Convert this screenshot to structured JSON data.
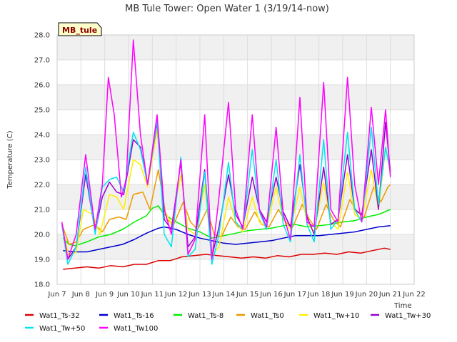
{
  "chart_data": {
    "type": "line",
    "title": "MB Tule Tower: Open Water 1 (3/19/14-now)",
    "site_label": "MB_tule",
    "xlabel": "Time",
    "ylabel": "Temperature (C)",
    "xlim": [
      7,
      22
    ],
    "ylim": [
      18.0,
      28.0
    ],
    "xticks": [
      7,
      8,
      9,
      10,
      11,
      12,
      13,
      14,
      15,
      16,
      17,
      18,
      19,
      20,
      21,
      22
    ],
    "xtick_labels": [
      "Jun 7",
      "Jun 8",
      "Jun 9",
      "Jun 10",
      "Jun 11",
      "Jun 12",
      "Jun 13",
      "Jun 14",
      "Jun 15",
      "Jun 16",
      "Jun 17",
      "Jun 18",
      "Jun 19",
      "Jun 20",
      "Jun 21",
      "Jun 22"
    ],
    "yticks": [
      18.0,
      19.0,
      20.0,
      21.0,
      22.0,
      23.0,
      24.0,
      25.0,
      26.0,
      27.0,
      28.0
    ],
    "ytick_labels": [
      "18.0",
      "19.0",
      "20.0",
      "21.0",
      "22.0",
      "23.0",
      "24.0",
      "25.0",
      "26.0",
      "27.0",
      "28.0"
    ],
    "bands": [
      [
        19.0,
        20.0
      ],
      [
        21.0,
        22.0
      ],
      [
        23.0,
        24.0
      ],
      [
        25.0,
        26.0
      ],
      [
        27.0,
        28.0
      ]
    ],
    "grid": true,
    "legend_position": "bottom",
    "series": [
      {
        "name": "Wat1_Ts-32",
        "color": "#dd0000",
        "x": [
          7.25,
          7.75,
          8.25,
          8.75,
          9.25,
          9.75,
          10.25,
          10.75,
          11.25,
          11.75,
          12.25,
          12.75,
          13.25,
          13.75,
          14.25,
          14.75,
          15.25,
          15.75,
          16.25,
          16.75,
          17.25,
          17.75,
          18.25,
          18.75,
          19.25,
          19.75,
          20.25,
          20.75,
          21.0
        ],
        "values": [
          18.6,
          18.65,
          18.7,
          18.65,
          18.75,
          18.7,
          18.8,
          18.8,
          18.95,
          18.95,
          19.1,
          19.15,
          19.2,
          19.15,
          19.1,
          19.05,
          19.1,
          19.05,
          19.15,
          19.1,
          19.2,
          19.2,
          19.25,
          19.2,
          19.3,
          19.25,
          19.35,
          19.45,
          19.4
        ]
      },
      {
        "name": "Wat1_Ts-16",
        "color": "#0000cc",
        "x": [
          7.25,
          7.75,
          8.25,
          8.75,
          9.25,
          9.75,
          10.25,
          10.75,
          11.25,
          11.5,
          12.0,
          12.5,
          13.0,
          13.5,
          14.0,
          14.5,
          15.0,
          15.5,
          16.0,
          16.5,
          17.0,
          17.5,
          18.0,
          18.5,
          19.0,
          19.5,
          20.0,
          20.5,
          21.0
        ],
        "values": [
          19.35,
          19.3,
          19.3,
          19.4,
          19.5,
          19.6,
          19.8,
          20.05,
          20.25,
          20.3,
          20.2,
          20.0,
          19.85,
          19.75,
          19.65,
          19.6,
          19.65,
          19.7,
          19.75,
          19.85,
          19.95,
          19.95,
          19.95,
          20.0,
          20.05,
          20.1,
          20.2,
          20.3,
          20.35
        ]
      },
      {
        "name": "Wat1_Ts-8",
        "color": "#00ee00",
        "x": [
          7.25,
          7.5,
          7.75,
          8.25,
          8.75,
          9.25,
          9.75,
          10.25,
          10.75,
          11.0,
          11.25,
          11.5,
          12.0,
          12.5,
          13.0,
          13.5,
          14.0,
          14.5,
          15.0,
          15.5,
          16.0,
          16.5,
          17.0,
          17.5,
          18.0,
          18.5,
          19.0,
          19.5,
          20.0,
          20.5,
          21.0
        ],
        "values": [
          19.85,
          19.6,
          19.55,
          19.7,
          19.9,
          20.0,
          20.2,
          20.5,
          20.75,
          21.05,
          21.15,
          20.8,
          20.5,
          20.25,
          20.1,
          19.85,
          19.95,
          20.05,
          20.15,
          20.2,
          20.25,
          20.35,
          20.4,
          20.3,
          20.35,
          20.4,
          20.5,
          20.55,
          20.7,
          20.8,
          21.0
        ]
      },
      {
        "name": "Wat1_Ts0",
        "color": "#ee9900",
        "x": [
          7.2,
          7.5,
          7.8,
          8.1,
          8.6,
          8.9,
          9.2,
          9.6,
          9.9,
          10.2,
          10.6,
          10.9,
          11.25,
          11.6,
          11.9,
          12.3,
          12.6,
          12.9,
          13.3,
          13.6,
          13.9,
          14.3,
          14.6,
          14.9,
          15.3,
          15.6,
          15.9,
          16.3,
          16.6,
          16.9,
          17.3,
          17.6,
          17.9,
          18.3,
          18.6,
          18.9,
          19.3,
          19.6,
          19.9,
          20.3,
          20.6,
          20.9,
          21.0
        ],
        "values": [
          20.4,
          19.6,
          19.7,
          20.2,
          20.4,
          20.1,
          20.6,
          20.7,
          20.6,
          21.6,
          21.7,
          21.0,
          22.6,
          20.6,
          20.4,
          21.3,
          20.5,
          20.2,
          21.0,
          20.0,
          19.9,
          20.7,
          20.3,
          20.2,
          20.9,
          20.4,
          20.3,
          21.0,
          20.5,
          20.3,
          21.2,
          20.6,
          20.2,
          21.2,
          20.6,
          20.3,
          21.4,
          20.9,
          20.7,
          21.9,
          21.3,
          21.9,
          22.0
        ]
      },
      {
        "name": "Wat1_Tw+10",
        "color": "#ffee00",
        "x": [
          7.2,
          7.5,
          7.8,
          8.1,
          8.5,
          8.8,
          9.2,
          9.5,
          9.8,
          10.2,
          10.5,
          10.8,
          11.2,
          11.5,
          11.8,
          12.2,
          12.5,
          12.8,
          13.2,
          13.5,
          13.8,
          14.2,
          14.5,
          14.8,
          15.2,
          15.5,
          15.8,
          16.2,
          16.5,
          16.8,
          17.2,
          17.5,
          17.8,
          18.2,
          18.5,
          18.8,
          19.2,
          19.5,
          19.8,
          20.2,
          20.5,
          20.8,
          21.0
        ],
        "values": [
          20.3,
          19.1,
          19.3,
          21.0,
          20.8,
          20.0,
          21.6,
          21.5,
          21.0,
          23.0,
          22.8,
          21.9,
          24.2,
          21.0,
          20.4,
          22.4,
          20.2,
          20.0,
          22.0,
          19.2,
          19.5,
          21.5,
          20.5,
          20.1,
          21.5,
          20.5,
          20.3,
          21.9,
          20.6,
          20.2,
          21.9,
          20.5,
          20.1,
          22.1,
          20.5,
          20.2,
          22.5,
          20.8,
          20.6,
          22.6,
          21.0,
          23.5,
          22.4
        ]
      },
      {
        "name": "Wat1_Tw+30",
        "color": "#9900cc",
        "x": [
          7.2,
          7.45,
          7.8,
          8.2,
          8.6,
          8.9,
          9.2,
          9.5,
          9.8,
          10.2,
          10.5,
          10.8,
          11.2,
          11.5,
          11.8,
          12.2,
          12.5,
          12.8,
          13.2,
          13.5,
          13.8,
          14.2,
          14.5,
          14.8,
          15.2,
          15.5,
          15.8,
          16.2,
          16.5,
          16.8,
          17.2,
          17.5,
          17.8,
          18.2,
          18.5,
          18.8,
          19.2,
          19.5,
          19.8,
          20.2,
          20.5,
          20.8,
          21.0
        ],
        "values": [
          20.4,
          19.0,
          19.5,
          22.4,
          20.1,
          21.5,
          22.1,
          21.7,
          21.6,
          23.8,
          23.5,
          22.0,
          24.5,
          20.6,
          20.2,
          22.9,
          19.5,
          19.9,
          22.6,
          19.1,
          20.3,
          22.4,
          20.8,
          20.3,
          22.3,
          21.0,
          20.5,
          22.3,
          20.9,
          20.3,
          22.8,
          20.7,
          20.0,
          22.7,
          20.4,
          20.6,
          23.2,
          21.0,
          20.8,
          23.4,
          21.0,
          24.5,
          22.5
        ]
      },
      {
        "name": "Wat1_Tw+50",
        "color": "#00e5ee",
        "x": [
          7.2,
          7.45,
          7.8,
          8.2,
          8.6,
          8.9,
          9.2,
          9.5,
          9.8,
          10.2,
          10.5,
          10.8,
          11.2,
          11.5,
          11.8,
          12.2,
          12.5,
          12.8,
          13.2,
          13.5,
          13.8,
          14.2,
          14.5,
          14.8,
          15.2,
          15.5,
          15.8,
          16.2,
          16.5,
          16.8,
          17.2,
          17.5,
          17.8,
          18.2,
          18.5,
          18.8,
          19.2,
          19.5,
          19.8,
          20.2,
          20.5,
          20.8,
          21.0
        ],
        "values": [
          20.4,
          18.8,
          19.5,
          22.7,
          20.0,
          21.9,
          22.2,
          22.3,
          21.7,
          24.1,
          23.4,
          22.0,
          24.6,
          20.0,
          19.5,
          23.1,
          19.1,
          19.4,
          22.5,
          18.8,
          20.0,
          22.9,
          20.5,
          20.2,
          23.4,
          20.9,
          20.2,
          23.0,
          20.4,
          19.7,
          23.2,
          20.4,
          19.7,
          23.8,
          20.2,
          20.6,
          24.1,
          21.0,
          20.5,
          24.3,
          21.2,
          23.5,
          22.5
        ]
      },
      {
        "name": "Wat1_Tw100",
        "color": "#ff00ff",
        "x": [
          7.2,
          7.45,
          7.8,
          8.2,
          8.6,
          8.9,
          9.15,
          9.4,
          9.7,
          9.9,
          10.2,
          10.5,
          10.8,
          11.2,
          11.5,
          11.8,
          12.2,
          12.5,
          12.8,
          13.2,
          13.5,
          13.8,
          14.2,
          14.5,
          14.8,
          15.2,
          15.5,
          15.8,
          16.2,
          16.5,
          16.8,
          17.2,
          17.5,
          17.8,
          18.2,
          18.5,
          18.8,
          19.2,
          19.5,
          19.8,
          20.2,
          20.5,
          20.8,
          21.0
        ],
        "values": [
          20.5,
          19.0,
          20.0,
          23.2,
          20.2,
          22.0,
          26.3,
          24.8,
          21.5,
          22.2,
          27.8,
          24.0,
          22.0,
          24.8,
          21.0,
          20.0,
          23.0,
          19.2,
          19.8,
          24.8,
          19.0,
          21.5,
          25.3,
          21.0,
          20.2,
          24.8,
          21.0,
          20.3,
          24.3,
          20.8,
          19.8,
          25.5,
          20.5,
          20.3,
          26.1,
          21.0,
          20.5,
          26.3,
          22.0,
          20.5,
          25.1,
          22.0,
          25.0,
          22.3
        ]
      }
    ]
  }
}
